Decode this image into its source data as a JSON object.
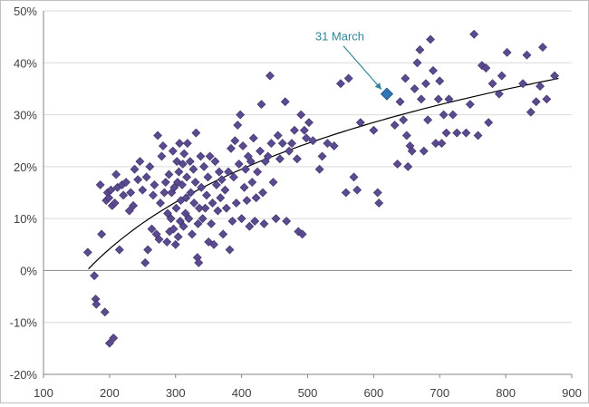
{
  "chart_data": {
    "type": "scatter",
    "title": "",
    "xlabel": "",
    "ylabel": "",
    "xlim": [
      100,
      900
    ],
    "ylim": [
      -20,
      50
    ],
    "x_ticks": [
      100,
      200,
      300,
      400,
      500,
      600,
      700,
      800,
      900
    ],
    "x_tick_labels": [
      "100",
      "200",
      "300",
      "400",
      "500",
      "600",
      "700",
      "800",
      "900"
    ],
    "y_ticks": [
      -20,
      -10,
      0,
      10,
      20,
      30,
      40,
      50
    ],
    "y_tick_labels": [
      "-20%",
      "-10%",
      "0%",
      "10%",
      "20%",
      "30%",
      "40%",
      "50%"
    ],
    "grid": "horizontal",
    "legend": "none",
    "colors": {
      "points": "#5b4a8f",
      "point_outline": "#3c2f66",
      "highlight": "#2e75b6",
      "highlight_outline": "#1f4e79",
      "trendline": "#000000",
      "gridline": "#d9d9d9",
      "axis": "#868686",
      "annotation": "#31849b"
    },
    "annotation": {
      "text": "31 March",
      "x": 620,
      "y": 34
    },
    "trendline": {
      "type": "logarithmic",
      "x_start": 168,
      "x_end": 880,
      "y_start": 0.3,
      "y_end": 37
    },
    "highlight_point": {
      "x": 620,
      "y": 34
    },
    "series": [
      {
        "points": [
          [
            167,
            3.5
          ],
          [
            177,
            -1
          ],
          [
            179,
            -5.5
          ],
          [
            180,
            -6.5
          ],
          [
            186,
            16.5
          ],
          [
            188,
            7
          ],
          [
            193,
            -8
          ],
          [
            195,
            13.5
          ],
          [
            197,
            15
          ],
          [
            199,
            14
          ],
          [
            200,
            -14
          ],
          [
            202,
            15.5
          ],
          [
            204,
            12.5
          ],
          [
            206,
            -13
          ],
          [
            208,
            13
          ],
          [
            210,
            18.5
          ],
          [
            212,
            16
          ],
          [
            215,
            4
          ],
          [
            219,
            16.5
          ],
          [
            221,
            14.5
          ],
          [
            225,
            17
          ],
          [
            230,
            11.5
          ],
          [
            232,
            15
          ],
          [
            236,
            12.5
          ],
          [
            238,
            19.5
          ],
          [
            243,
            17.5
          ],
          [
            246,
            21
          ],
          [
            250,
            15.5
          ],
          [
            254,
            1.5
          ],
          [
            256,
            18
          ],
          [
            258,
            4
          ],
          [
            261,
            20
          ],
          [
            264,
            8
          ],
          [
            266,
            14.5
          ],
          [
            268,
            16.5
          ],
          [
            271,
            7
          ],
          [
            273,
            26
          ],
          [
            275,
            6
          ],
          [
            277,
            13
          ],
          [
            279,
            22
          ],
          [
            281,
            24
          ],
          [
            283,
            15
          ],
          [
            285,
            17
          ],
          [
            287,
            5.5
          ],
          [
            288,
            11
          ],
          [
            290,
            18.5
          ],
          [
            291,
            7.5
          ],
          [
            293,
            10
          ],
          [
            294,
            15
          ],
          [
            296,
            23
          ],
          [
            297,
            8
          ],
          [
            298,
            16
          ],
          [
            300,
            5
          ],
          [
            301,
            12
          ],
          [
            302,
            21
          ],
          [
            303,
            17
          ],
          [
            304,
            6.5
          ],
          [
            305,
            19
          ],
          [
            306,
            24.5
          ],
          [
            307,
            9.5
          ],
          [
            308,
            13.5
          ],
          [
            310,
            16.5
          ],
          [
            311,
            20.5
          ],
          [
            312,
            8.5
          ],
          [
            313,
            22.5
          ],
          [
            315,
            11
          ],
          [
            316,
            14
          ],
          [
            317,
            18
          ],
          [
            318,
            24.5
          ],
          [
            320,
            10
          ],
          [
            322,
            21
          ],
          [
            323,
            15
          ],
          [
            325,
            7
          ],
          [
            327,
            19.5
          ],
          [
            328,
            13
          ],
          [
            330,
            17
          ],
          [
            331,
            26.5
          ],
          [
            333,
            2.5
          ],
          [
            334,
            9
          ],
          [
            335,
            1.5
          ],
          [
            336,
            12
          ],
          [
            338,
            22
          ],
          [
            339,
            16
          ],
          [
            341,
            10
          ],
          [
            343,
            20
          ],
          [
            345,
            12
          ],
          [
            347,
            14.5
          ],
          [
            349,
            18
          ],
          [
            350,
            5.5
          ],
          [
            352,
            22
          ],
          [
            354,
            9
          ],
          [
            356,
            13
          ],
          [
            358,
            5
          ],
          [
            360,
            21
          ],
          [
            362,
            16.5
          ],
          [
            364,
            11.5
          ],
          [
            366,
            19
          ],
          [
            368,
            14
          ],
          [
            370,
            17.5
          ],
          [
            372,
            7
          ],
          [
            375,
            15.5
          ],
          [
            377,
            12
          ],
          [
            380,
            19
          ],
          [
            382,
            4
          ],
          [
            384,
            23.5
          ],
          [
            386,
            9.5
          ],
          [
            388,
            18
          ],
          [
            390,
            25
          ],
          [
            392,
            13
          ],
          [
            394,
            28
          ],
          [
            396,
            20.5
          ],
          [
            398,
            30
          ],
          [
            400,
            10
          ],
          [
            402,
            24
          ],
          [
            404,
            16
          ],
          [
            406,
            19.5
          ],
          [
            408,
            13.5
          ],
          [
            410,
            22
          ],
          [
            412,
            8.5
          ],
          [
            414,
            21
          ],
          [
            416,
            17
          ],
          [
            418,
            25.5
          ],
          [
            420,
            9.5
          ],
          [
            422,
            14
          ],
          [
            424,
            19
          ],
          [
            428,
            23
          ],
          [
            430,
            32
          ],
          [
            432,
            15
          ],
          [
            434,
            9
          ],
          [
            436,
            21
          ],
          [
            440,
            22
          ],
          [
            443,
            37.5
          ],
          [
            445,
            24.5
          ],
          [
            448,
            17
          ],
          [
            452,
            10
          ],
          [
            455,
            26
          ],
          [
            458,
            21.5
          ],
          [
            462,
            24.5
          ],
          [
            466,
            32.5
          ],
          [
            468,
            9.5
          ],
          [
            472,
            23
          ],
          [
            476,
            24.5
          ],
          [
            480,
            27
          ],
          [
            484,
            21.5
          ],
          [
            486,
            7.5
          ],
          [
            490,
            30
          ],
          [
            492,
            7
          ],
          [
            495,
            27
          ],
          [
            498,
            25.5
          ],
          [
            502,
            28.5
          ],
          [
            508,
            25
          ],
          [
            518,
            19.5
          ],
          [
            522,
            22
          ],
          [
            530,
            24.5
          ],
          [
            540,
            24
          ],
          [
            550,
            36
          ],
          [
            558,
            15
          ],
          [
            562,
            37
          ],
          [
            570,
            18
          ],
          [
            575,
            15.5
          ],
          [
            580,
            28.5
          ],
          [
            600,
            27
          ],
          [
            606,
            15
          ],
          [
            608,
            13
          ],
          [
            620,
            34
          ],
          [
            632,
            28
          ],
          [
            636,
            20.5
          ],
          [
            640,
            32.5
          ],
          [
            645,
            29
          ],
          [
            648,
            37
          ],
          [
            650,
            26
          ],
          [
            652,
            20
          ],
          [
            655,
            24
          ],
          [
            658,
            23
          ],
          [
            662,
            35
          ],
          [
            666,
            40
          ],
          [
            670,
            42.5
          ],
          [
            672,
            33
          ],
          [
            676,
            23
          ],
          [
            679,
            36
          ],
          [
            682,
            29
          ],
          [
            686,
            44.5
          ],
          [
            690,
            38.5
          ],
          [
            694,
            24.5
          ],
          [
            698,
            33
          ],
          [
            700,
            36.5
          ],
          [
            703,
            24.5
          ],
          [
            706,
            30
          ],
          [
            710,
            26.5
          ],
          [
            714,
            33
          ],
          [
            720,
            30
          ],
          [
            726,
            26.5
          ],
          [
            740,
            26.5
          ],
          [
            746,
            32
          ],
          [
            752,
            45.5
          ],
          [
            758,
            26
          ],
          [
            764,
            39.5
          ],
          [
            770,
            39
          ],
          [
            774,
            28.5
          ],
          [
            780,
            36
          ],
          [
            790,
            34
          ],
          [
            794,
            37.5
          ],
          [
            802,
            42
          ],
          [
            826,
            36
          ],
          [
            832,
            41.5
          ],
          [
            838,
            30.5
          ],
          [
            846,
            32.5
          ],
          [
            852,
            35.5
          ],
          [
            856,
            43
          ],
          [
            862,
            33
          ],
          [
            874,
            37.5
          ]
        ]
      }
    ]
  }
}
